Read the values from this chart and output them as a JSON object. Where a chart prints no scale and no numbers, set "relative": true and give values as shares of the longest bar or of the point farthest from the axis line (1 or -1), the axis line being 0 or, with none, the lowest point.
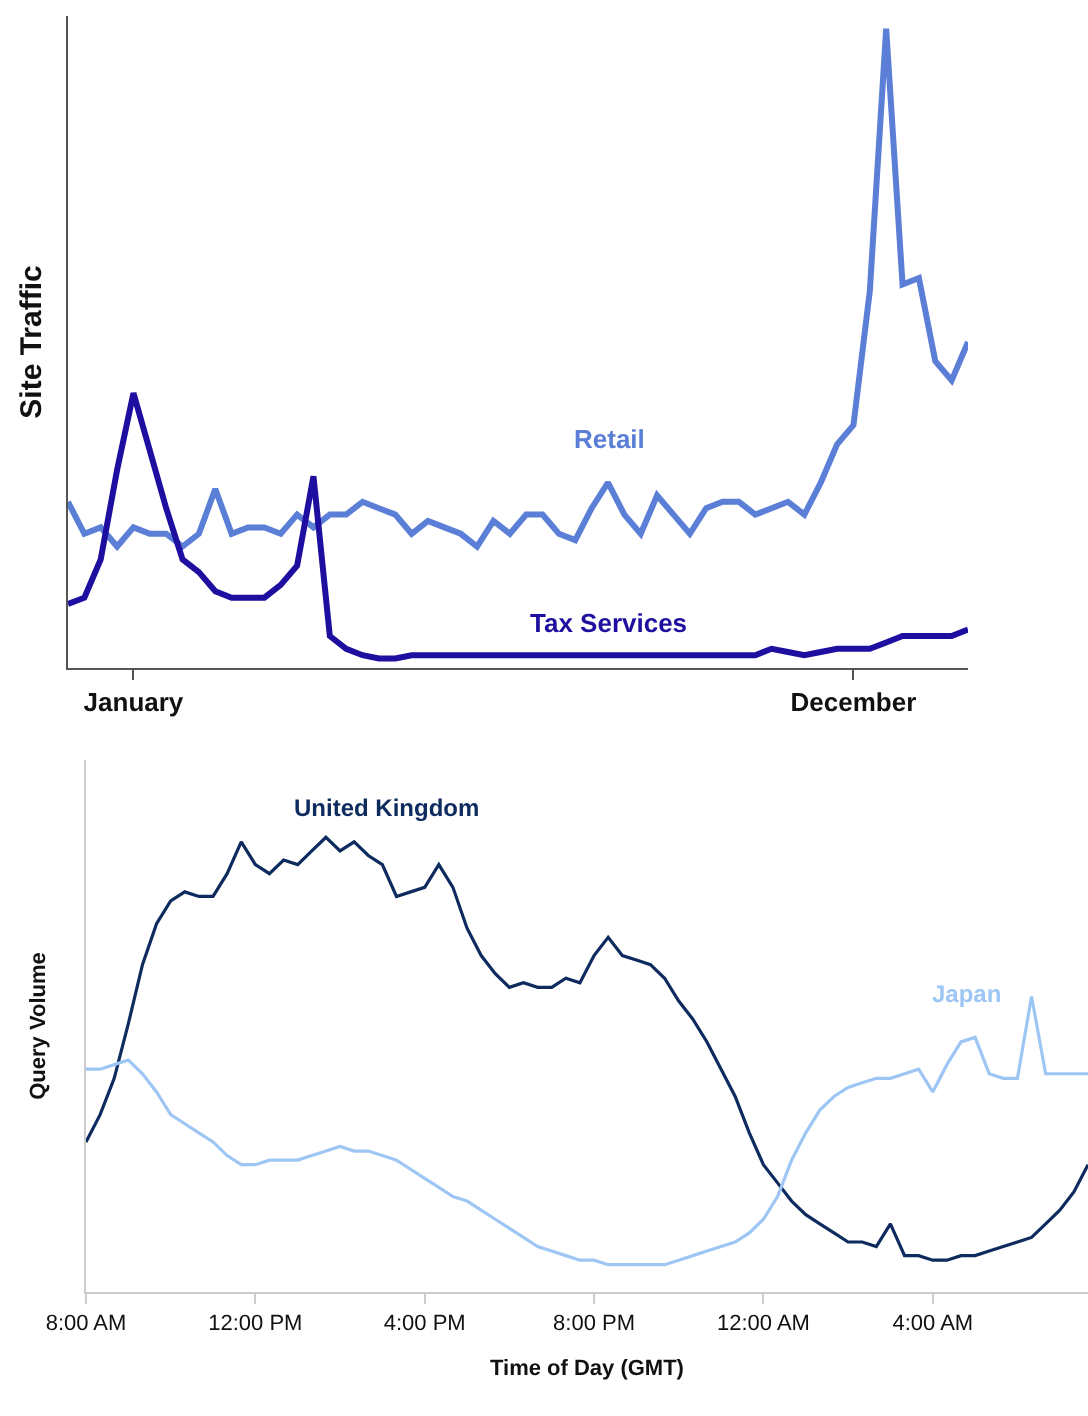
{
  "chart_data": [
    {
      "type": "line",
      "ylabel": "Site Traffic",
      "relative": true,
      "grid": false,
      "legend": false,
      "tick_labels": "x",
      "marker": "none",
      "line_style": "solid",
      "categories": [
        null,
        null,
        null,
        null,
        "January",
        null,
        null,
        null,
        null,
        null,
        null,
        null,
        null,
        null,
        null,
        null,
        null,
        null,
        null,
        null,
        null,
        null,
        null,
        null,
        null,
        null,
        null,
        null,
        null,
        null,
        null,
        null,
        null,
        null,
        null,
        null,
        null,
        null,
        null,
        null,
        null,
        null,
        null,
        null,
        null,
        null,
        null,
        null,
        "December",
        null,
        null,
        null,
        null,
        null,
        null,
        null
      ],
      "series": [
        {
          "name": "Retail",
          "color": "#5b7fd6",
          "values": [
            0.26,
            0.21,
            0.22,
            0.19,
            0.22,
            0.21,
            0.21,
            0.19,
            0.21,
            0.28,
            0.21,
            0.22,
            0.22,
            0.21,
            0.24,
            0.22,
            0.24,
            0.24,
            0.26,
            0.25,
            0.24,
            0.21,
            0.23,
            0.22,
            0.21,
            0.19,
            0.23,
            0.21,
            0.24,
            0.24,
            0.21,
            0.2,
            0.25,
            0.29,
            0.24,
            0.21,
            0.27,
            0.24,
            0.21,
            0.25,
            0.26,
            0.26,
            0.24,
            0.25,
            0.26,
            0.24,
            0.29,
            0.35,
            0.38,
            0.59,
            1,
            0.6,
            0.61,
            0.48,
            0.45,
            0.51
          ]
        },
        {
          "name": "Tax Services",
          "color": "#1f0fa0",
          "values": [
            0.1,
            0.11,
            0.17,
            0.31,
            0.43,
            0.34,
            0.25,
            0.17,
            0.15,
            0.12,
            0.11,
            0.11,
            0.11,
            0.13,
            0.16,
            0.3,
            0.05,
            0.03,
            0.02,
            0.015,
            0.015,
            0.02,
            0.02,
            0.02,
            0.02,
            0.02,
            0.02,
            0.02,
            0.02,
            0.02,
            0.02,
            0.02,
            0.02,
            0.02,
            0.02,
            0.02,
            0.02,
            0.02,
            0.02,
            0.02,
            0.02,
            0.02,
            0.02,
            0.03,
            0.025,
            0.02,
            0.025,
            0.03,
            0.03,
            0.03,
            0.04,
            0.05,
            0.05,
            0.05,
            0.05,
            0.06
          ]
        }
      ]
    },
    {
      "type": "line",
      "ylabel": "Query Volume",
      "xlabel": "Time of Day (GMT)",
      "relative": true,
      "grid": false,
      "legend": false,
      "tick_labels": "x",
      "marker": "none",
      "line_style": "solid",
      "categories": [
        "8:00 AM",
        null,
        null,
        null,
        null,
        null,
        null,
        null,
        null,
        null,
        null,
        null,
        "12:00 PM",
        null,
        null,
        null,
        null,
        null,
        null,
        null,
        null,
        null,
        null,
        null,
        "4:00 PM",
        null,
        null,
        null,
        null,
        null,
        null,
        null,
        null,
        null,
        null,
        null,
        "8:00 PM",
        null,
        null,
        null,
        null,
        null,
        null,
        null,
        null,
        null,
        null,
        null,
        "12:00 AM",
        null,
        null,
        null,
        null,
        null,
        null,
        null,
        null,
        null,
        null,
        null,
        "4:00 AM",
        null,
        null,
        null,
        null,
        null,
        null,
        null,
        null,
        null,
        null,
        null
      ],
      "series": [
        {
          "name": "United Kingdom",
          "color": "#0d2b5e",
          "values": [
            0.33,
            0.39,
            0.47,
            0.59,
            0.72,
            0.81,
            0.86,
            0.88,
            0.87,
            0.87,
            0.92,
            0.99,
            0.94,
            0.92,
            0.95,
            0.94,
            0.97,
            1,
            0.97,
            0.99,
            0.96,
            0.94,
            0.87,
            0.88,
            0.89,
            0.94,
            0.89,
            0.8,
            0.74,
            0.7,
            0.67,
            0.68,
            0.67,
            0.67,
            0.69,
            0.68,
            0.74,
            0.78,
            0.74,
            0.73,
            0.72,
            0.69,
            0.64,
            0.6,
            0.55,
            0.49,
            0.43,
            0.35,
            0.28,
            0.24,
            0.2,
            0.17,
            0.15,
            0.13,
            0.11,
            0.11,
            0.1,
            0.15,
            0.08,
            0.08,
            0.07,
            0.07,
            0.08,
            0.08,
            0.09,
            0.1,
            0.11,
            0.12,
            0.15,
            0.18,
            0.22,
            0.28
          ]
        },
        {
          "name": "Japan",
          "color": "#9ec6f5",
          "values": [
            0.49,
            0.49,
            0.5,
            0.51,
            0.48,
            0.44,
            0.39,
            0.37,
            0.35,
            0.33,
            0.3,
            0.28,
            0.28,
            0.29,
            0.29,
            0.29,
            0.3,
            0.31,
            0.32,
            0.31,
            0.31,
            0.3,
            0.29,
            0.27,
            0.25,
            0.23,
            0.21,
            0.2,
            0.18,
            0.16,
            0.14,
            0.12,
            0.1,
            0.09,
            0.08,
            0.07,
            0.07,
            0.06,
            0.06,
            0.06,
            0.06,
            0.06,
            0.07,
            0.08,
            0.09,
            0.1,
            0.11,
            0.13,
            0.16,
            0.21,
            0.29,
            0.35,
            0.4,
            0.43,
            0.45,
            0.46,
            0.47,
            0.47,
            0.48,
            0.49,
            0.44,
            0.5,
            0.55,
            0.56,
            0.48,
            0.47,
            0.47,
            0.65,
            0.48,
            0.48,
            0.48,
            0.48
          ]
        }
      ]
    }
  ]
}
